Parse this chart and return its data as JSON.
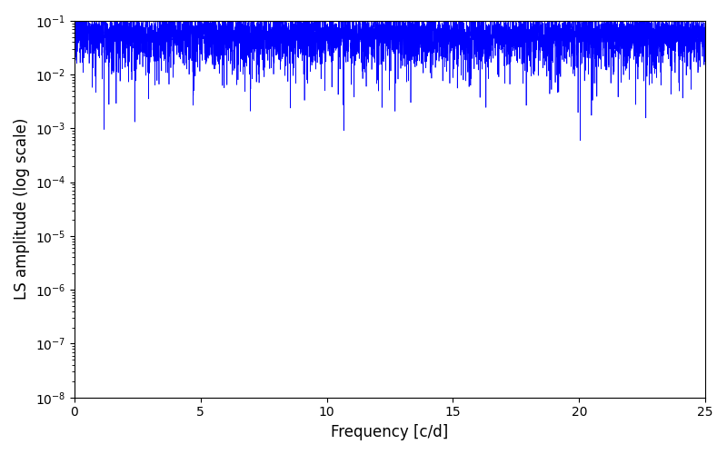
{
  "xlabel": "Frequency [c/d]",
  "ylabel": "LS amplitude (log scale)",
  "xlim": [
    0,
    25
  ],
  "ylim": [
    1e-08,
    0.1
  ],
  "line_color": "#0000FF",
  "line_width": 0.5,
  "figsize": [
    8.0,
    5.0
  ],
  "dpi": 100,
  "n_freq": 6000,
  "seed": 17,
  "obs_span": 400,
  "n_obs": 500
}
